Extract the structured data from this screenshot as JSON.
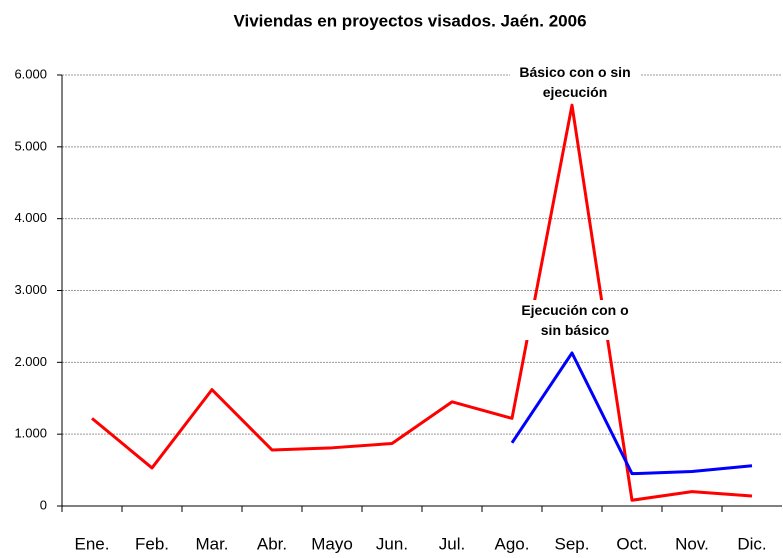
{
  "chart_data": {
    "type": "line",
    "title": "Viviendas en proyectos visados. Jaén. 2006",
    "categories": [
      "Ene.",
      "Feb.",
      "Mar.",
      "Abr.",
      "Mayo",
      "Jun.",
      "Jul.",
      "Ago.",
      "Sep.",
      "Oct.",
      "Nov.",
      "Dic."
    ],
    "series": [
      {
        "name": "Básico con o sin ejecución",
        "color": "#ff0000",
        "values": [
          1220,
          530,
          1620,
          780,
          810,
          870,
          1450,
          1220,
          5580,
          80,
          200,
          140
        ]
      },
      {
        "name": "Ejecución con o sin básico",
        "color": "#0000ff",
        "values": [
          null,
          null,
          null,
          null,
          null,
          null,
          null,
          880,
          2130,
          450,
          480,
          560
        ]
      }
    ],
    "ylim": [
      0,
      6000
    ],
    "yticks": [
      0,
      {
        "value": 1000,
        "label": "1.000"
      },
      {
        "value": 2000,
        "label": "2.000"
      },
      {
        "value": 3000,
        "label": "3.000"
      },
      {
        "value": 4000,
        "label": "4.000"
      },
      {
        "value": 5000,
        "label": "5.000"
      },
      {
        "value": 6000,
        "label": "6.000"
      }
    ],
    "grid": true
  }
}
